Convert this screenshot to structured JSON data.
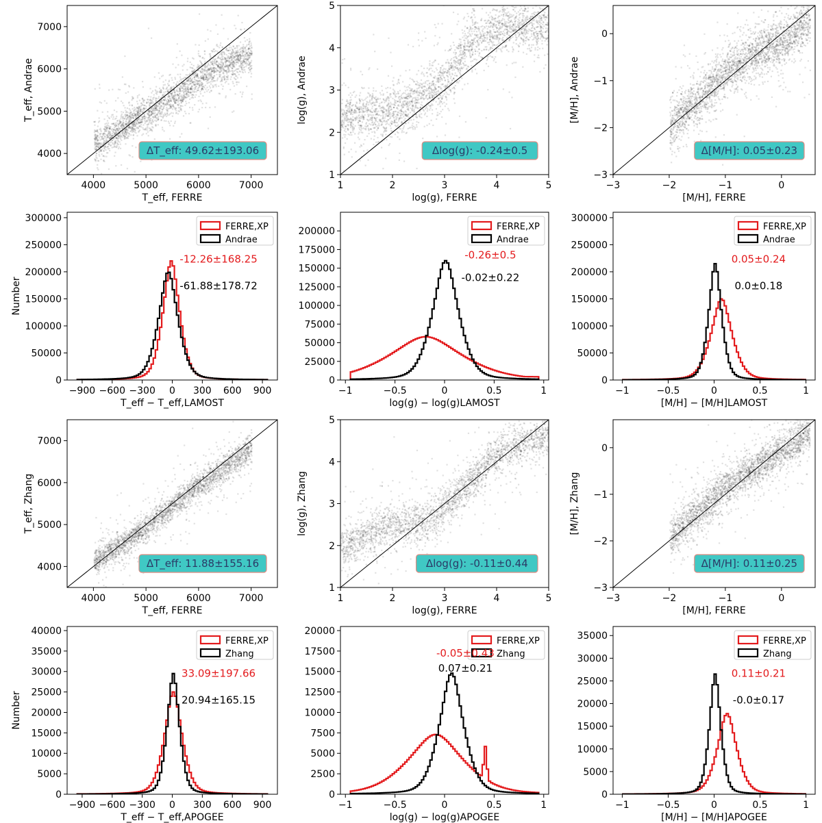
{
  "colors": {
    "ferre": "#e31a1c",
    "compare": "#000000",
    "badge_bg": "#40c8c4",
    "badge_border": "#e08a80",
    "badge_text": "#2a3a66",
    "density": "#000000",
    "hist_red_text": "#e31a1c"
  },
  "chart_data": [
    {
      "id": "p11",
      "type": "scatter",
      "subtype": "density",
      "xlabel": "T_eff, FERRE",
      "ylabel": "T_eff, Andrae",
      "xlim": [
        3500,
        7500
      ],
      "ylim": [
        3500,
        7500
      ],
      "xticks": [
        4000,
        5000,
        6000,
        7000
      ],
      "yticks": [
        4000,
        5000,
        6000,
        7000
      ],
      "identity_line": true,
      "badge_prefix": "ΔT_eff",
      "badge_value": "49.62±193.06",
      "ridge": [
        [
          4000,
          4200
        ],
        [
          4500,
          4600
        ],
        [
          5000,
          4950
        ],
        [
          5500,
          5350
        ],
        [
          6000,
          5800
        ],
        [
          6500,
          6150
        ],
        [
          7000,
          6350
        ]
      ],
      "spread": 260
    },
    {
      "id": "p12",
      "type": "scatter",
      "subtype": "density",
      "xlabel": "log(g), FERRE",
      "ylabel": "log(g), Andrae",
      "xlim": [
        1,
        5
      ],
      "ylim": [
        1,
        5
      ],
      "xticks": [
        1,
        2,
        3,
        4,
        5
      ],
      "yticks": [
        1,
        2,
        3,
        4,
        5
      ],
      "identity_line": true,
      "badge_prefix": "Δlog(g)",
      "badge_value": "-0.24±0.5",
      "ridge": [
        [
          1,
          2.4
        ],
        [
          2,
          2.5
        ],
        [
          3,
          3.2
        ],
        [
          3.5,
          4.2
        ],
        [
          4,
          4.45
        ],
        [
          5,
          4.55
        ]
      ],
      "spread": 0.35
    },
    {
      "id": "p13",
      "type": "scatter",
      "subtype": "density",
      "xlabel": "[M/H], FERRE",
      "ylabel": "[M/H], Andrae",
      "xlim": [
        -3,
        0.6
      ],
      "ylim": [
        -3,
        0.6
      ],
      "xticks": [
        -3,
        -2,
        -1,
        0
      ],
      "yticks": [
        -3,
        -2,
        -1,
        0
      ],
      "identity_line": true,
      "badge_prefix": "Δ[M/H]",
      "badge_value": "0.05±0.23",
      "ridge": [
        [
          -2,
          -1.9
        ],
        [
          -1.5,
          -1.4
        ],
        [
          -1,
          -0.8
        ],
        [
          -0.5,
          -0.4
        ],
        [
          0,
          -0.15
        ],
        [
          0.5,
          0.3
        ]
      ],
      "spread": 0.3
    },
    {
      "id": "p21",
      "type": "histogram",
      "xlabel": "T_eff − T_eff,LAMOST",
      "ylabel": "Number",
      "xlim": [
        -1050,
        1050
      ],
      "ylim": [
        0,
        310000
      ],
      "xticks": [
        -900,
        -600,
        -300,
        0,
        300,
        600,
        900
      ],
      "yticks": [
        0,
        50000,
        100000,
        150000,
        200000,
        250000,
        300000
      ],
      "legend": [
        "FERRE,XP",
        "Andrae"
      ],
      "series": [
        {
          "name": "FERRE,XP",
          "color": "red",
          "center": -20,
          "peak": 220000,
          "width": 95,
          "shape": "lorentz"
        },
        {
          "name": "Andrae",
          "color": "black",
          "center": -50,
          "peak": 200000,
          "width": 110,
          "shape": "lorentz"
        }
      ],
      "annotations": [
        "-12.26±168.25",
        "-61.88±178.72"
      ]
    },
    {
      "id": "p22",
      "type": "histogram",
      "xlabel": "log(g) − log(g)LAMOST",
      "ylabel": "",
      "xlim": [
        -1.05,
        1.05
      ],
      "ylim": [
        0,
        225000
      ],
      "xticks": [
        -1.0,
        -0.5,
        0.0,
        0.5,
        1.0
      ],
      "yticks": [
        0,
        25000,
        50000,
        75000,
        100000,
        125000,
        150000,
        175000,
        200000
      ],
      "legend": [
        "FERRE,XP",
        "Andrae"
      ],
      "series": [
        {
          "name": "FERRE,XP",
          "color": "red",
          "center": -0.2,
          "peak": 58000,
          "width": 0.42,
          "shape": "lorentz",
          "floor": 6000
        },
        {
          "name": "Andrae",
          "color": "black",
          "center": 0.0,
          "peak": 160000,
          "width": 0.15,
          "shape": "lorentz"
        }
      ],
      "annotations": [
        "-0.26±0.5",
        "-0.02±0.22"
      ]
    },
    {
      "id": "p23",
      "type": "histogram",
      "xlabel": "[M/H] − [M/H]LAMOST",
      "ylabel": "",
      "xlim": [
        -1.1,
        1.1
      ],
      "ylim": [
        0,
        310000
      ],
      "xticks": [
        -1.0,
        -0.5,
        0.0,
        0.5,
        1.0
      ],
      "yticks": [
        0,
        50000,
        100000,
        150000,
        200000,
        250000,
        300000
      ],
      "legend": [
        "FERRE,XP",
        "Andrae"
      ],
      "series": [
        {
          "name": "FERRE,XP",
          "color": "red",
          "center": 0.07,
          "peak": 150000,
          "width": 0.13,
          "shape": "lorentz"
        },
        {
          "name": "Andrae",
          "color": "black",
          "center": 0.0,
          "peak": 215000,
          "width": 0.08,
          "shape": "lorentz"
        }
      ],
      "annotations": [
        "0.05±0.24",
        "0.0±0.18"
      ]
    },
    {
      "id": "p31",
      "type": "scatter",
      "subtype": "density",
      "xlabel": "T_eff, FERRE",
      "ylabel": "T_eff, Zhang",
      "xlim": [
        3500,
        7500
      ],
      "ylim": [
        3500,
        7500
      ],
      "xticks": [
        4000,
        5000,
        6000,
        7000
      ],
      "yticks": [
        4000,
        5000,
        6000,
        7000
      ],
      "identity_line": true,
      "badge_prefix": "ΔT_eff",
      "badge_value": "11.88±155.16",
      "ridge": [
        [
          4000,
          4100
        ],
        [
          5000,
          4950
        ],
        [
          6000,
          5950
        ],
        [
          7000,
          6800
        ]
      ],
      "spread": 200
    },
    {
      "id": "p32",
      "type": "scatter",
      "subtype": "density",
      "xlabel": "log(g), FERRE",
      "ylabel": "log(g), Zhang",
      "xlim": [
        1,
        5
      ],
      "ylim": [
        1,
        5
      ],
      "xticks": [
        1,
        2,
        3,
        4,
        5
      ],
      "yticks": [
        1,
        2,
        3,
        4,
        5
      ],
      "identity_line": true,
      "badge_prefix": "Δlog(g)",
      "badge_value": "-0.11±0.44",
      "ridge": [
        [
          1,
          2.0
        ],
        [
          2,
          2.5
        ],
        [
          2.7,
          2.55
        ],
        [
          3.3,
          3.3
        ],
        [
          4,
          4.2
        ],
        [
          5,
          4.7
        ]
      ],
      "spread": 0.3
    },
    {
      "id": "p33",
      "type": "scatter",
      "subtype": "density",
      "xlabel": "[M/H], FERRE",
      "ylabel": "[M/H], Zhang",
      "xlim": [
        -3,
        0.6
      ],
      "ylim": [
        -3,
        0.6
      ],
      "xticks": [
        -3,
        -2,
        -1,
        0
      ],
      "yticks": [
        -3,
        -2,
        -1,
        0
      ],
      "identity_line": true,
      "badge_prefix": "Δ[M/H]",
      "badge_value": "0.11±0.25",
      "ridge": [
        [
          -2,
          -1.9
        ],
        [
          -1.5,
          -1.4
        ],
        [
          -1,
          -0.8
        ],
        [
          -0.5,
          -0.45
        ],
        [
          0,
          -0.05
        ],
        [
          0.5,
          0.35
        ]
      ],
      "spread": 0.25
    },
    {
      "id": "p41",
      "type": "histogram",
      "xlabel": "T_eff − T_eff,APOGEE",
      "ylabel": "Number",
      "xlim": [
        -1050,
        1050
      ],
      "ylim": [
        0,
        41000
      ],
      "xticks": [
        -900,
        -600,
        -300,
        0,
        300,
        600,
        900
      ],
      "yticks": [
        0,
        5000,
        10000,
        15000,
        20000,
        25000,
        30000,
        35000,
        40000
      ],
      "legend": [
        "FERRE,XP",
        "Zhang"
      ],
      "series": [
        {
          "name": "FERRE,XP",
          "color": "red",
          "center": 0,
          "peak": 25000,
          "width": 100,
          "shape": "lorentz"
        },
        {
          "name": "Zhang",
          "color": "black",
          "center": 0,
          "peak": 29500,
          "width": 70,
          "shape": "lorentz"
        }
      ],
      "annotations": [
        "33.09±197.66",
        "20.94±165.15"
      ]
    },
    {
      "id": "p42",
      "type": "histogram",
      "xlabel": "log(g) − log(g)APOGEE",
      "ylabel": "",
      "xlim": [
        -1.05,
        1.05
      ],
      "ylim": [
        0,
        20500
      ],
      "xticks": [
        -1.0,
        -0.5,
        0.0,
        0.5,
        1.0
      ],
      "yticks": [
        0,
        2500,
        5000,
        7500,
        10000,
        12500,
        15000,
        17500,
        20000
      ],
      "legend": [
        "FERRE,XP",
        "Zhang"
      ],
      "series": [
        {
          "name": "FERRE,XP",
          "color": "red",
          "center": -0.1,
          "peak": 7300,
          "width": 0.32,
          "shape": "lorentz",
          "bump": [
            0.4,
            4000
          ]
        },
        {
          "name": "Zhang",
          "color": "black",
          "center": 0.06,
          "peak": 14800,
          "width": 0.14,
          "shape": "lorentz"
        }
      ],
      "annotations": [
        "-0.05±0.43",
        "0.07±0.21"
      ]
    },
    {
      "id": "p43",
      "type": "histogram",
      "xlabel": "[M/H] − [M/H]APOGEE",
      "ylabel": "",
      "xlim": [
        -1.1,
        1.1
      ],
      "ylim": [
        0,
        37000
      ],
      "xticks": [
        -1.0,
        -0.5,
        0.0,
        0.5,
        1.0
      ],
      "yticks": [
        0,
        5000,
        10000,
        15000,
        20000,
        25000,
        30000,
        35000
      ],
      "legend": [
        "FERRE,XP",
        "Zhang"
      ],
      "series": [
        {
          "name": "FERRE,XP",
          "color": "red",
          "center": 0.13,
          "peak": 17800,
          "width": 0.12,
          "shape": "lorentz"
        },
        {
          "name": "Zhang",
          "color": "black",
          "center": 0.0,
          "peak": 26500,
          "width": 0.07,
          "shape": "lorentz"
        }
      ],
      "annotations": [
        "0.11±0.21",
        "-0.0±0.17"
      ]
    }
  ]
}
